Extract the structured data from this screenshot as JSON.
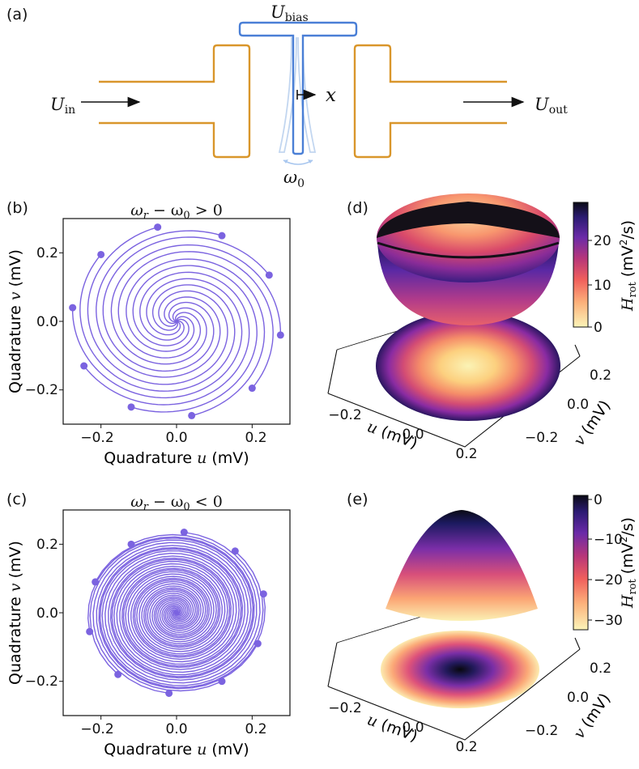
{
  "colors": {
    "gold": "#d9962b",
    "blue": "#4a7fd6",
    "blue_light": "#c2d6f0",
    "spiral": "#7b63e0",
    "cmap": [
      "#fbf4b8",
      "#fcb07a",
      "#f05f5c",
      "#b7367a",
      "#6a2aa8",
      "#2b1b72",
      "#0a0a14"
    ]
  },
  "panel_a": {
    "label": "(a)",
    "u_bias": "U",
    "u_bias_sub": "bias",
    "u_in": "U",
    "u_in_sub": "in",
    "u_out": "U",
    "u_out_sub": "out",
    "x": "x",
    "omega": "ω",
    "omega_sub": "0"
  },
  "panel_b": {
    "label": "(b)",
    "title": "ω_r − ω_0 > 0",
    "title_parts": [
      "ω",
      "r",
      " − ω",
      "0",
      " > 0"
    ],
    "xlabel": "Quadrature u (mV)",
    "xlabel_parts": [
      "Quadrature ",
      "u",
      " (mV)"
    ],
    "ylabel": "Quadrature v (mV)",
    "ylabel_parts": [
      "Quadrature ",
      "v",
      " (mV)"
    ],
    "xticks": [
      "−0.2",
      "0.0",
      "0.2"
    ],
    "yticks": [
      "0.2",
      "0.0",
      "−0.2"
    ]
  },
  "panel_c": {
    "label": "(c)",
    "title": "ω_r − ω_0 < 0",
    "title_parts": [
      "ω",
      "r",
      " − ω",
      "0",
      " < 0"
    ],
    "xlabel": "Quadrature u (mV)",
    "xlabel_parts": [
      "Quadrature ",
      "u",
      " (mV)"
    ],
    "ylabel": "Quadrature v (mV)",
    "ylabel_parts": [
      "Quadrature ",
      "v",
      " (mV)"
    ],
    "xticks": [
      "−0.2",
      "0.0",
      "0.2"
    ],
    "yticks": [
      "0.2",
      "0.0",
      "−0.2"
    ]
  },
  "panel_d": {
    "label": "(d)",
    "cbar_label": "H_rot (mV²/s)",
    "cbar_label_parts": [
      "H",
      "rot",
      " (mV",
      "2",
      "/s)"
    ],
    "cbar_ticks": [
      "20",
      "10",
      "0"
    ],
    "u_ticks": [
      "−0.2",
      "0.0",
      "0.2"
    ],
    "v_ticks": [
      "0.2",
      "0.0",
      "−0.2"
    ],
    "u_label_parts": [
      "u",
      " (mV)"
    ],
    "v_label_parts": [
      "v",
      " (mV)"
    ]
  },
  "panel_e": {
    "label": "(e)",
    "cbar_label": "H_rot (mV²/s)",
    "cbar_label_parts": [
      "H",
      "rot",
      " (mV",
      "2",
      "/s)"
    ],
    "cbar_ticks": [
      "0",
      "−10",
      "−20",
      "−30"
    ],
    "u_ticks": [
      "−0.2",
      "0.0",
      "0.2"
    ],
    "v_ticks": [
      "0.2",
      "0.0",
      "−0.2"
    ],
    "u_label_parts": [
      "u",
      " (mV)"
    ],
    "v_label_parts": [
      "v",
      " (mV)"
    ]
  },
  "chart_data": [
    {
      "type": "line",
      "panel": "b",
      "title": "ω_r − ω_0 > 0",
      "xlabel": "Quadrature u (mV)",
      "ylabel": "Quadrature v (mV)",
      "xlim": [
        -0.3,
        0.3
      ],
      "ylim": [
        -0.3,
        0.3
      ],
      "spiral": "trajectories spiral inward to (0, 0), curling counter-clockwise",
      "start_points_mV": [
        [
          -0.05,
          0.275
        ],
        [
          0.12,
          0.25
        ],
        [
          0.245,
          0.135
        ],
        [
          0.275,
          -0.04
        ],
        [
          0.2,
          -0.195
        ],
        [
          0.04,
          -0.275
        ],
        [
          -0.12,
          -0.25
        ],
        [
          -0.245,
          -0.13
        ],
        [
          -0.275,
          0.04
        ],
        [
          -0.2,
          0.195
        ]
      ]
    },
    {
      "type": "line",
      "panel": "c",
      "title": "ω_r − ω_0 < 0",
      "xlabel": "Quadrature u (mV)",
      "ylabel": "Quadrature v (mV)",
      "xlim": [
        -0.3,
        0.3
      ],
      "ylim": [
        -0.3,
        0.3
      ],
      "spiral": "trajectories spiral inward to (0, 0), curling clockwise",
      "start_points_mV": [
        [
          0.02,
          0.235
        ],
        [
          0.155,
          0.18
        ],
        [
          0.23,
          0.055
        ],
        [
          0.215,
          -0.09
        ],
        [
          0.12,
          -0.2
        ],
        [
          -0.02,
          -0.235
        ],
        [
          -0.155,
          -0.18
        ],
        [
          -0.23,
          -0.055
        ],
        [
          -0.215,
          0.09
        ],
        [
          -0.12,
          0.2
        ]
      ]
    },
    {
      "type": "heatmap",
      "panel": "d",
      "zlabel": "H_rot (mV²/s)",
      "zlim": [
        0,
        28
      ],
      "shape": "upward paraboloid (bowl), minimum 0 at center",
      "u_range": [
        -0.3,
        0.3
      ],
      "v_range": [
        -0.3,
        0.3
      ]
    },
    {
      "type": "heatmap",
      "panel": "e",
      "zlabel": "H_rot (mV²/s)",
      "zlim": [
        -33,
        0
      ],
      "shape": "downward paraboloid (dome), maximum 0 at center",
      "u_range": [
        -0.3,
        0.3
      ],
      "v_range": [
        -0.3,
        0.3
      ]
    }
  ]
}
